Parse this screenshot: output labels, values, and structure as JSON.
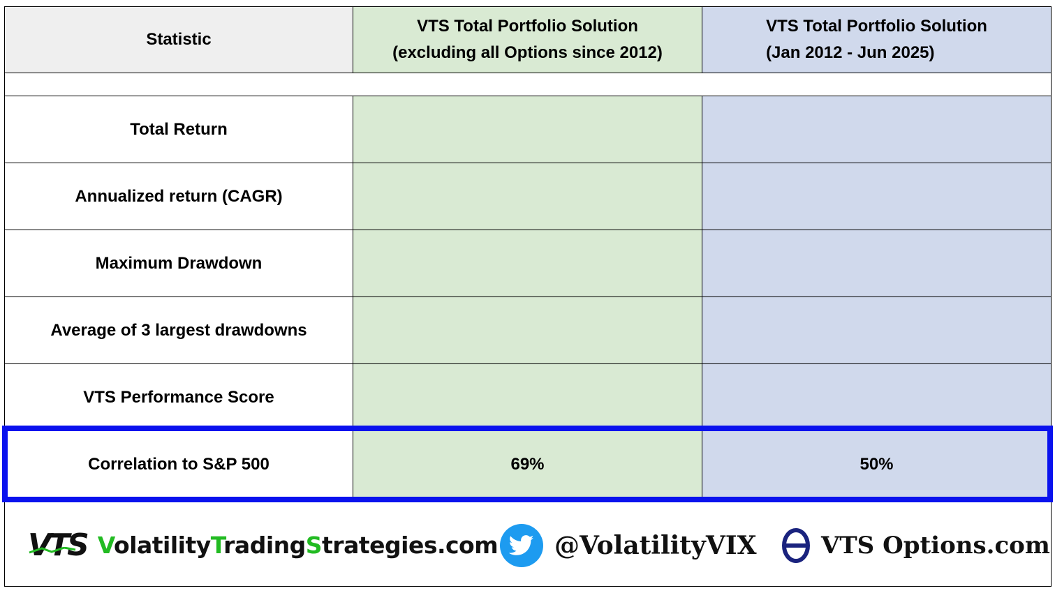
{
  "header": {
    "statistic": "Statistic",
    "col1_line1": "VTS Total Portfolio Solution",
    "col1_line2": "(excluding all Options since 2012)",
    "col2_line1": "VTS Total Portfolio Solution",
    "col2_line2": "(Jan 2012 -  Jun 2025)"
  },
  "rows": [
    {
      "label": "Total Return",
      "col1": "",
      "col2": ""
    },
    {
      "label": "Annualized return  (CAGR)",
      "col1": "",
      "col2": ""
    },
    {
      "label": "Maximum Drawdown",
      "col1": "",
      "col2": ""
    },
    {
      "label": "Average of 3 largest drawdowns",
      "col1": "",
      "col2": ""
    },
    {
      "label": "VTS Performance Score",
      "col1": "",
      "col2": ""
    },
    {
      "label": "Correlation to S&P 500",
      "col1": "69%",
      "col2": "50%"
    }
  ],
  "footer": {
    "logo_text": "VTS",
    "site_parts": [
      "V",
      "olatility",
      "T",
      "rading",
      "S",
      "trategies.com"
    ],
    "twitter_handle": "@VolatilityVIX",
    "options_site": "VTS Options.com",
    "icons": [
      "vts-logo-icon",
      "twitter-bird-icon",
      "theta-icon"
    ],
    "colors": {
      "green_col": "#d9ead3",
      "blue_col": "#d0d9ec",
      "highlight": "#0a12ee",
      "site_green": "#22bb22",
      "twitter_blue": "#1d9bf0",
      "theta_navy": "#1a237e"
    }
  }
}
